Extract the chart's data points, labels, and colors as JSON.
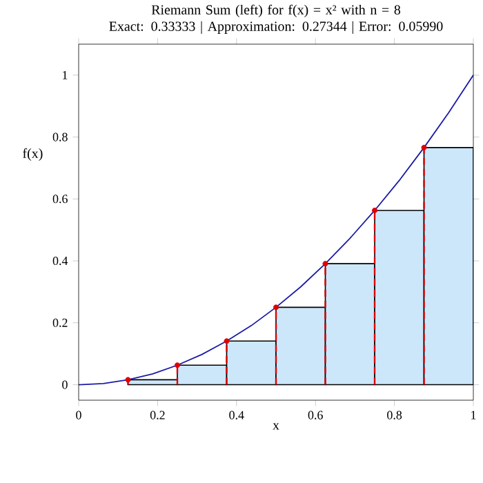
{
  "chart_data": {
    "type": "histogram",
    "title": "Riemann Sum (left) for f(x) = x² with n = 8",
    "subtitle": "Exact: 0.33333 | Approximation: 0.27344 | Error: 0.05990",
    "xlabel": "x",
    "ylabel": "f(x)",
    "xlim": [
      0,
      1
    ],
    "ylim": [
      -0.05,
      1.1
    ],
    "xticks": [
      0,
      0.2,
      0.4,
      0.6,
      0.8,
      1
    ],
    "yticks": [
      0,
      0.2,
      0.4,
      0.6,
      0.8,
      1
    ],
    "grid": false,
    "series": [
      {
        "color": "#cce6fa",
        "bins": [
          0,
          0.125,
          0.25,
          0.375,
          0.5,
          0.625,
          0.75,
          0.875,
          1
        ],
        "values": [
          0,
          0.016,
          0.063,
          0.141,
          0.25,
          0.391,
          0.563,
          0.766
        ]
      },
      {
        "type": "line",
        "color": "#1a1aa6",
        "marker": "none",
        "x": [
          0,
          0.0625,
          0.125,
          0.1875,
          0.25,
          0.3125,
          0.375,
          0.4375,
          0.5,
          0.5625,
          0.625,
          0.6875,
          0.75,
          0.8125,
          0.875,
          0.9375,
          1
        ],
        "values": [
          0,
          0.004,
          0.016,
          0.035,
          0.063,
          0.098,
          0.141,
          0.191,
          0.25,
          0.316,
          0.391,
          0.473,
          0.563,
          0.66,
          0.766,
          0.879,
          1
        ]
      },
      {
        "type": "scatter",
        "color": "#e00000",
        "marker": "circle",
        "line_style": "dashed",
        "x": [
          0.125,
          0.25,
          0.375,
          0.5,
          0.625,
          0.75,
          0.875
        ],
        "values": [
          0.016,
          0.063,
          0.141,
          0.25,
          0.391,
          0.563,
          0.766
        ],
        "errors": [
          [
            0,
            0.016
          ],
          [
            0,
            0.063
          ],
          [
            0,
            0.141
          ],
          [
            0,
            0.25
          ],
          [
            0,
            0.391
          ],
          [
            0,
            0.563
          ],
          [
            0,
            0.766
          ]
        ]
      }
    ]
  }
}
